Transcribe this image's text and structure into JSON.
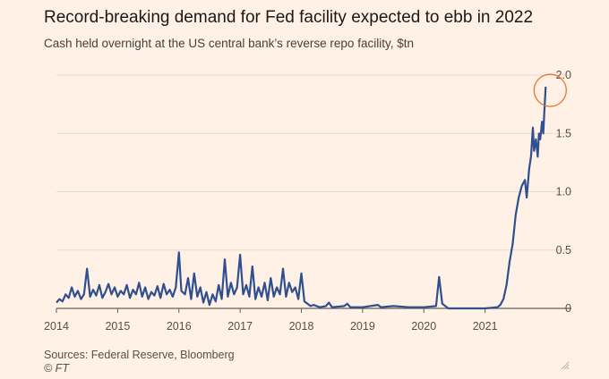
{
  "header": {
    "title": "Record-breaking demand for Fed facility expected to ebb in 2022",
    "subtitle": "Cash held overnight at the US central bank’s reverse repo facility, $tn"
  },
  "footer": {
    "source": "Sources: Federal Reserve, Bloomberg",
    "credit": "© FT"
  },
  "colors": {
    "line": "#2F4F8F",
    "highlight": "#E8752E",
    "grid": "#E6D9CE",
    "axis": "#66605A"
  },
  "chart_data": {
    "type": "line",
    "title": "Record-breaking demand for Fed facility expected to ebb in 2022",
    "subtitle": "Cash held overnight at the US central bank’s reverse repo facility, $tn",
    "xlabel": "",
    "ylabel": "",
    "xlim": [
      2014.0,
      2022.0
    ],
    "ylim": [
      0,
      2.0
    ],
    "x_ticks": [
      "2014",
      "2015",
      "2016",
      "2017",
      "2018",
      "2019",
      "2020",
      "2021"
    ],
    "y_ticks": [
      "0",
      "0.5",
      "1.0",
      "1.5",
      "2.0"
    ],
    "grid": true,
    "legend": "none",
    "annotation": "circle highlighting the latest peak near 1.9",
    "series": [
      {
        "values": [
          [
            2014.0,
            0.05
          ],
          [
            2014.05,
            0.08
          ],
          [
            2014.1,
            0.06
          ],
          [
            2014.15,
            0.12
          ],
          [
            2014.2,
            0.09
          ],
          [
            2014.25,
            0.18
          ],
          [
            2014.3,
            0.1
          ],
          [
            2014.35,
            0.15
          ],
          [
            2014.4,
            0.08
          ],
          [
            2014.45,
            0.12
          ],
          [
            2014.5,
            0.34
          ],
          [
            2014.55,
            0.1
          ],
          [
            2014.6,
            0.16
          ],
          [
            2014.65,
            0.11
          ],
          [
            2014.7,
            0.2
          ],
          [
            2014.75,
            0.09
          ],
          [
            2014.8,
            0.14
          ],
          [
            2014.85,
            0.21
          ],
          [
            2014.9,
            0.12
          ],
          [
            2014.95,
            0.18
          ],
          [
            2015.0,
            0.1
          ],
          [
            2015.05,
            0.15
          ],
          [
            2015.1,
            0.12
          ],
          [
            2015.15,
            0.2
          ],
          [
            2015.2,
            0.09
          ],
          [
            2015.25,
            0.16
          ],
          [
            2015.3,
            0.12
          ],
          [
            2015.35,
            0.22
          ],
          [
            2015.4,
            0.1
          ],
          [
            2015.45,
            0.18
          ],
          [
            2015.5,
            0.08
          ],
          [
            2015.55,
            0.14
          ],
          [
            2015.6,
            0.11
          ],
          [
            2015.65,
            0.19
          ],
          [
            2015.7,
            0.09
          ],
          [
            2015.75,
            0.21
          ],
          [
            2015.8,
            0.12
          ],
          [
            2015.85,
            0.16
          ],
          [
            2015.9,
            0.1
          ],
          [
            2015.95,
            0.18
          ],
          [
            2016.0,
            0.48
          ],
          [
            2016.04,
            0.15
          ],
          [
            2016.1,
            0.12
          ],
          [
            2016.15,
            0.26
          ],
          [
            2016.2,
            0.08
          ],
          [
            2016.25,
            0.3
          ],
          [
            2016.3,
            0.1
          ],
          [
            2016.35,
            0.18
          ],
          [
            2016.4,
            0.05
          ],
          [
            2016.45,
            0.14
          ],
          [
            2016.5,
            0.03
          ],
          [
            2016.55,
            0.12
          ],
          [
            2016.6,
            0.06
          ],
          [
            2016.65,
            0.2
          ],
          [
            2016.7,
            0.08
          ],
          [
            2016.75,
            0.42
          ],
          [
            2016.8,
            0.1
          ],
          [
            2016.85,
            0.22
          ],
          [
            2016.9,
            0.12
          ],
          [
            2016.95,
            0.18
          ],
          [
            2017.0,
            0.46
          ],
          [
            2017.05,
            0.12
          ],
          [
            2017.1,
            0.2
          ],
          [
            2017.15,
            0.1
          ],
          [
            2017.2,
            0.36
          ],
          [
            2017.25,
            0.08
          ],
          [
            2017.3,
            0.18
          ],
          [
            2017.35,
            0.1
          ],
          [
            2017.4,
            0.22
          ],
          [
            2017.45,
            0.07
          ],
          [
            2017.5,
            0.26
          ],
          [
            2017.55,
            0.1
          ],
          [
            2017.6,
            0.18
          ],
          [
            2017.65,
            0.12
          ],
          [
            2017.7,
            0.34
          ],
          [
            2017.75,
            0.1
          ],
          [
            2017.8,
            0.22
          ],
          [
            2017.85,
            0.14
          ],
          [
            2017.9,
            0.18
          ],
          [
            2017.95,
            0.08
          ],
          [
            2018.0,
            0.3
          ],
          [
            2018.05,
            0.06
          ],
          [
            2018.1,
            0.04
          ],
          [
            2018.15,
            0.02
          ],
          [
            2018.2,
            0.03
          ],
          [
            2018.3,
            0.01
          ],
          [
            2018.4,
            0.02
          ],
          [
            2018.45,
            0.05
          ],
          [
            2018.5,
            0.01
          ],
          [
            2018.7,
            0.02
          ],
          [
            2018.75,
            0.04
          ],
          [
            2018.8,
            0.01
          ],
          [
            2019.0,
            0.01
          ],
          [
            2019.25,
            0.03
          ],
          [
            2019.3,
            0.01
          ],
          [
            2019.5,
            0.02
          ],
          [
            2019.75,
            0.01
          ],
          [
            2020.0,
            0.01
          ],
          [
            2020.2,
            0.02
          ],
          [
            2020.25,
            0.27
          ],
          [
            2020.3,
            0.04
          ],
          [
            2020.4,
            0.0
          ],
          [
            2020.6,
            0.0
          ],
          [
            2020.8,
            0.0
          ],
          [
            2021.0,
            0.0
          ],
          [
            2021.2,
            0.01
          ],
          [
            2021.25,
            0.03
          ],
          [
            2021.3,
            0.08
          ],
          [
            2021.35,
            0.2
          ],
          [
            2021.4,
            0.4
          ],
          [
            2021.45,
            0.55
          ],
          [
            2021.5,
            0.8
          ],
          [
            2021.55,
            0.95
          ],
          [
            2021.6,
            1.05
          ],
          [
            2021.65,
            1.1
          ],
          [
            2021.68,
            0.95
          ],
          [
            2021.72,
            1.2
          ],
          [
            2021.75,
            1.3
          ],
          [
            2021.78,
            1.55
          ],
          [
            2021.8,
            1.35
          ],
          [
            2021.83,
            1.45
          ],
          [
            2021.86,
            1.3
          ],
          [
            2021.88,
            1.5
          ],
          [
            2021.9,
            1.45
          ],
          [
            2021.93,
            1.6
          ],
          [
            2021.95,
            1.5
          ],
          [
            2021.97,
            1.7
          ],
          [
            2021.99,
            1.9
          ]
        ]
      }
    ]
  }
}
